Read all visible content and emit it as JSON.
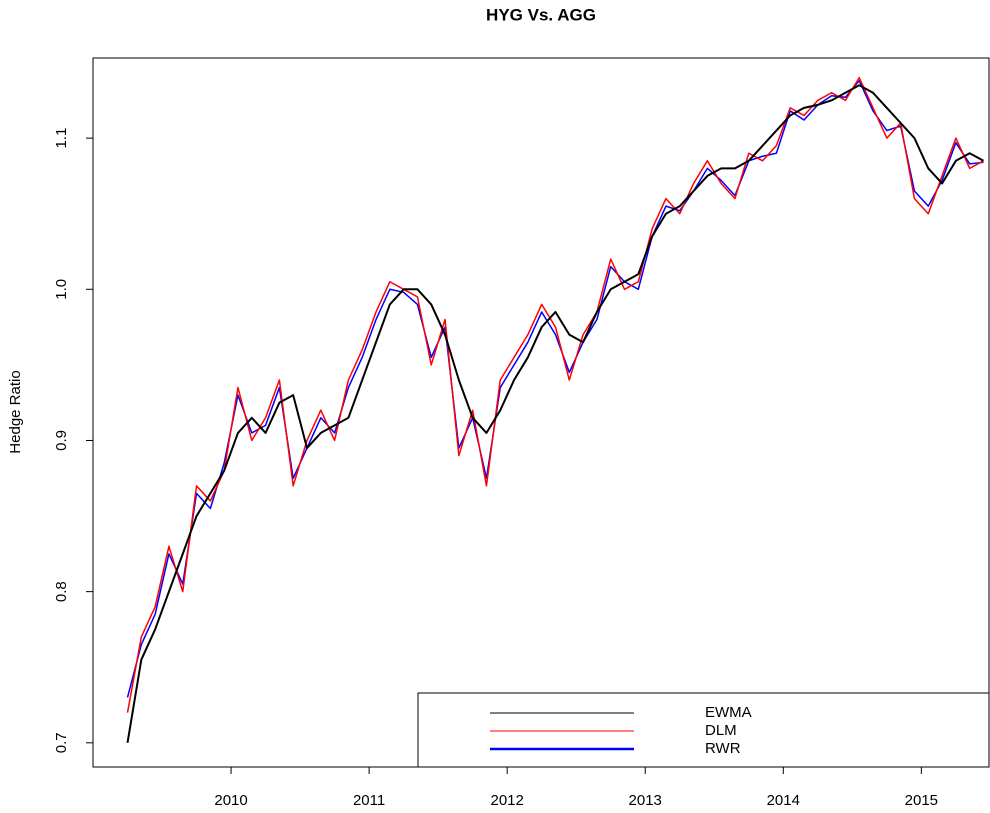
{
  "chart_data": {
    "type": "line",
    "title": "HYG Vs. AGG",
    "y_label": "Hedge Ratio",
    "xlim": [
      2009.0,
      2015.49
    ],
    "xticks": [
      2010,
      2011,
      2012,
      2013,
      2014,
      2015
    ],
    "ylim": [
      0.684,
      1.153
    ],
    "yticks": [
      0.7,
      0.8,
      0.9,
      {
        "value": 1,
        "label": "1.0"
      },
      1.1
    ],
    "legend_position": "bottomright",
    "x": [
      2009.25,
      2009.35,
      2009.45,
      2009.55,
      2009.65,
      2009.75,
      2009.85,
      2009.95,
      2010.05,
      2010.15,
      2010.25,
      2010.35,
      2010.45,
      2010.55,
      2010.65,
      2010.75,
      2010.85,
      2010.95,
      2011.05,
      2011.15,
      2011.25,
      2011.35,
      2011.45,
      2011.55,
      2011.65,
      2011.75,
      2011.85,
      2011.95,
      2012.05,
      2012.15,
      2012.25,
      2012.35,
      2012.45,
      2012.55,
      2012.65,
      2012.75,
      2012.85,
      2012.95,
      2013.05,
      2013.15,
      2013.25,
      2013.35,
      2013.45,
      2013.55,
      2013.65,
      2013.75,
      2013.85,
      2013.95,
      2014.05,
      2014.15,
      2014.25,
      2014.35,
      2014.45,
      2014.55,
      2014.65,
      2014.75,
      2014.85,
      2014.95,
      2015.05,
      2015.15,
      2015.25,
      2015.35,
      2015.45
    ],
    "series": [
      {
        "name": "EWMA",
        "color": "#000000",
        "values": [
          0.7,
          0.755,
          0.775,
          0.8,
          0.825,
          0.85,
          0.865,
          0.88,
          0.905,
          0.915,
          0.905,
          0.925,
          0.93,
          0.895,
          0.905,
          0.91,
          0.915,
          0.94,
          0.965,
          0.99,
          1.0,
          1.0,
          0.99,
          0.97,
          0.94,
          0.915,
          0.905,
          0.92,
          0.94,
          0.955,
          0.975,
          0.985,
          0.97,
          0.965,
          0.985,
          1.0,
          1.005,
          1.01,
          1.035,
          1.05,
          1.055,
          1.065,
          1.075,
          1.08,
          1.08,
          1.085,
          1.095,
          1.105,
          1.115,
          1.12,
          1.122,
          1.125,
          1.13,
          1.135,
          1.13,
          1.12,
          1.11,
          1.1,
          1.08,
          1.07,
          1.085,
          1.09,
          1.085
        ]
      },
      {
        "name": "DLM",
        "color": "#ff0000",
        "values": [
          0.72,
          0.77,
          0.79,
          0.83,
          0.8,
          0.87,
          0.86,
          0.88,
          0.935,
          0.9,
          0.915,
          0.94,
          0.87,
          0.9,
          0.92,
          0.9,
          0.94,
          0.96,
          0.985,
          1.005,
          1.0,
          0.995,
          0.95,
          0.98,
          0.89,
          0.92,
          0.87,
          0.94,
          0.955,
          0.97,
          0.99,
          0.975,
          0.94,
          0.97,
          0.985,
          1.02,
          1.0,
          1.005,
          1.04,
          1.06,
          1.05,
          1.07,
          1.085,
          1.07,
          1.06,
          1.09,
          1.085,
          1.095,
          1.12,
          1.115,
          1.125,
          1.13,
          1.125,
          1.14,
          1.12,
          1.1,
          1.11,
          1.06,
          1.05,
          1.075,
          1.1,
          1.08,
          1.085
        ]
      },
      {
        "name": "RWR",
        "color": "#0000ff",
        "values": [
          0.73,
          0.765,
          0.785,
          0.825,
          0.805,
          0.865,
          0.855,
          0.885,
          0.93,
          0.905,
          0.91,
          0.935,
          0.875,
          0.895,
          0.915,
          0.905,
          0.935,
          0.955,
          0.98,
          1.0,
          0.998,
          0.99,
          0.955,
          0.975,
          0.895,
          0.915,
          0.875,
          0.935,
          0.95,
          0.965,
          0.985,
          0.97,
          0.945,
          0.965,
          0.98,
          1.015,
          1.005,
          1.0,
          1.035,
          1.055,
          1.052,
          1.065,
          1.08,
          1.072,
          1.062,
          1.085,
          1.088,
          1.09,
          1.118,
          1.112,
          1.122,
          1.128,
          1.127,
          1.138,
          1.118,
          1.105,
          1.108,
          1.065,
          1.055,
          1.072,
          1.097,
          1.083,
          1.084
        ]
      }
    ]
  }
}
